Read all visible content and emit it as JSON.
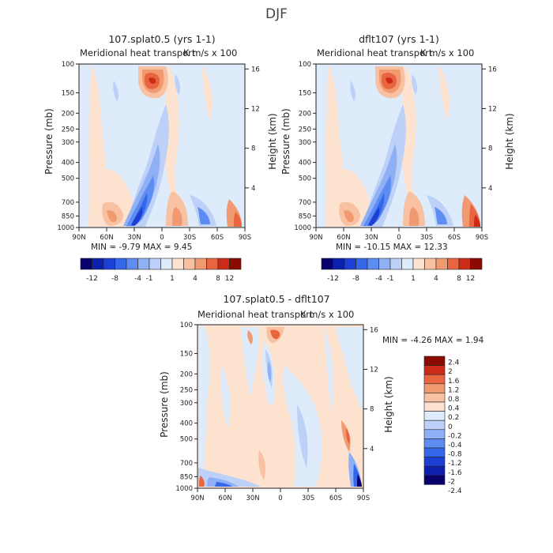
{
  "title": "DJF",
  "colors": {
    "full": [
      "#08006b",
      "#0c1fae",
      "#1d3fd4",
      "#3567e9",
      "#5d8df2",
      "#8fb0f5",
      "#bdd0f7",
      "#ddebfb",
      "#fde2d0",
      "#f8c1a1",
      "#f19a71",
      "#e9653f",
      "#cc2b18",
      "#8b0a02"
    ],
    "diff": [
      "#08006b",
      "#0c1fae",
      "#1d3fd4",
      "#3567e9",
      "#5d8df2",
      "#8fb0f5",
      "#bdd0f7",
      "#ddebfb",
      "#fde2d0",
      "#f8c1a1",
      "#f19a71",
      "#e9653f",
      "#cc2b18",
      "#8b0a02"
    ]
  },
  "colorbar_full_labels": [
    "-12",
    "-8",
    "-4",
    "-1",
    "1",
    "4",
    "8",
    "12"
  ],
  "colorbar_diff_labels": [
    "2.4",
    "2",
    "1.6",
    "1.2",
    "0.8",
    "0.4",
    "0.2",
    "0",
    "-0.2",
    "-0.4",
    "-0.8",
    "-1.2",
    "-1.6",
    "-2",
    "-2.4"
  ],
  "panels": [
    {
      "title": "107.splat0.5 (yrs 1-1)",
      "subtitle_left": "Meridional heat transport",
      "subtitle_right": "K m/s x 100",
      "ylabel": "Pressure (mb)",
      "ylabel_right": "Height (km)",
      "minmax": "MIN =   -9.79   MAX =    9.45"
    },
    {
      "title": "dflt107 (yrs 1-1)",
      "subtitle_left": "Meridional heat transport",
      "subtitle_right": "K m/s x 100",
      "ylabel": "Pressure (mb)",
      "ylabel_right": "Height (km)",
      "minmax": "MIN =  -10.15   MAX =   12.33"
    },
    {
      "title": "107.splat0.5 - dflt107",
      "subtitle_left": "Meridional heat transport",
      "subtitle_right": "K m/s x 100",
      "ylabel": "Pressure (mb)",
      "ylabel_right": "Height (km)",
      "minmax": "MIN =    -4.26   MAX =    1.94"
    }
  ],
  "chart_data": [
    {
      "type": "heatmap",
      "title": "107.splat0.5 (yrs 1-1)",
      "subtitle": "Meridional heat transport  K m/s x 100",
      "xlabel": "",
      "ylabel": "Pressure (mb)",
      "ylabel_right": "Height (km)",
      "x_ticks": [
        "90N",
        "60N",
        "30N",
        "0",
        "30S",
        "60S",
        "90S"
      ],
      "y_ticks": [
        "100",
        "150",
        "200",
        "250",
        "300",
        "400",
        "500",
        "700",
        "850",
        "1000"
      ],
      "y_right_ticks": [
        "16",
        "12",
        "8",
        "4"
      ],
      "ylim": [
        1000,
        100
      ],
      "min": -9.79,
      "max": 9.45,
      "levels": [
        -12,
        -10,
        -8,
        -6,
        -4,
        -2,
        -1,
        0,
        1,
        2,
        4,
        6,
        8,
        10,
        12
      ]
    },
    {
      "type": "heatmap",
      "title": "dflt107 (yrs 1-1)",
      "subtitle": "Meridional heat transport  K m/s x 100",
      "xlabel": "",
      "ylabel": "Pressure (mb)",
      "ylabel_right": "Height (km)",
      "x_ticks": [
        "90N",
        "60N",
        "30N",
        "0",
        "30S",
        "60S",
        "90S"
      ],
      "y_ticks": [
        "100",
        "150",
        "200",
        "250",
        "300",
        "400",
        "500",
        "700",
        "850",
        "1000"
      ],
      "y_right_ticks": [
        "16",
        "12",
        "8",
        "4"
      ],
      "ylim": [
        1000,
        100
      ],
      "min": -10.15,
      "max": 12.33,
      "levels": [
        -12,
        -10,
        -8,
        -6,
        -4,
        -2,
        -1,
        0,
        1,
        2,
        4,
        6,
        8,
        10,
        12
      ]
    },
    {
      "type": "heatmap",
      "title": "107.splat0.5 - dflt107",
      "subtitle": "Meridional heat transport  K m/s x 100",
      "xlabel": "",
      "ylabel": "Pressure (mb)",
      "ylabel_right": "Height (km)",
      "x_ticks": [
        "90N",
        "60N",
        "30N",
        "0",
        "30S",
        "60S",
        "90S"
      ],
      "y_ticks": [
        "100",
        "150",
        "200",
        "250",
        "300",
        "400",
        "500",
        "700",
        "850",
        "1000"
      ],
      "y_right_ticks": [
        "16",
        "12",
        "8",
        "4"
      ],
      "ylim": [
        1000,
        100
      ],
      "min": -4.26,
      "max": 1.94,
      "levels": [
        -2.4,
        -2,
        -1.6,
        -1.2,
        -0.8,
        -0.4,
        -0.2,
        0,
        0.2,
        0.4,
        0.8,
        1.2,
        1.6,
        2,
        2.4
      ]
    }
  ]
}
